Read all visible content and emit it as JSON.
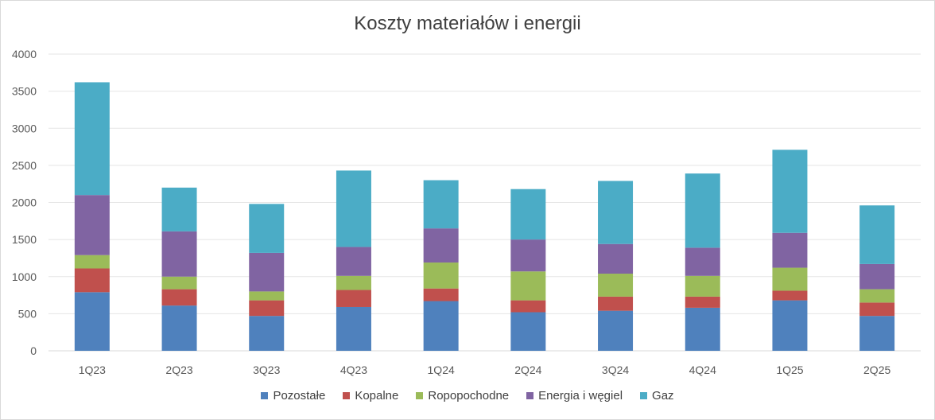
{
  "chart_data": {
    "type": "bar",
    "stacked": true,
    "title": "Koszty materiałów i energii",
    "xlabel": "",
    "ylabel": "",
    "ylim": [
      0,
      4000
    ],
    "yticks": [
      0,
      500,
      1000,
      1500,
      2000,
      2500,
      3000,
      3500,
      4000
    ],
    "grid": true,
    "legend_position": "bottom",
    "categories": [
      "1Q23",
      "2Q23",
      "3Q23",
      "4Q23",
      "1Q24",
      "2Q24",
      "3Q24",
      "4Q24",
      "1Q25",
      "2Q25"
    ],
    "series": [
      {
        "name": "Pozostałe",
        "color": "#4f81bd",
        "values": [
          790,
          610,
          470,
          590,
          670,
          520,
          540,
          580,
          680,
          470
        ]
      },
      {
        "name": "Kopalne",
        "color": "#c0504d",
        "values": [
          320,
          220,
          210,
          230,
          170,
          160,
          190,
          150,
          130,
          180
        ]
      },
      {
        "name": "Ropopochodne",
        "color": "#9bbb59",
        "values": [
          180,
          170,
          120,
          190,
          350,
          390,
          310,
          280,
          310,
          180
        ]
      },
      {
        "name": "Energia i węgiel",
        "color": "#8064a2",
        "values": [
          810,
          610,
          520,
          390,
          460,
          430,
          400,
          380,
          470,
          340
        ]
      },
      {
        "name": "Gaz",
        "color": "#4bacc6",
        "values": [
          1520,
          590,
          660,
          1030,
          650,
          680,
          850,
          1000,
          1120,
          790
        ]
      }
    ]
  }
}
